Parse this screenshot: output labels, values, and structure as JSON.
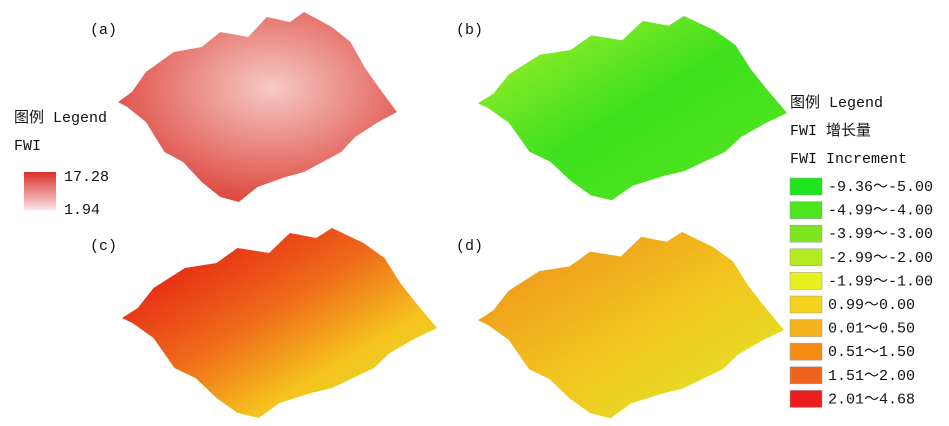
{
  "panels": [
    {
      "label": "(a)"
    },
    {
      "label": "(b)"
    },
    {
      "label": "(c)"
    },
    {
      "label": "(d)"
    }
  ],
  "fwi_legend": {
    "title": "图例 Legend",
    "subtitle": "FWI",
    "max_label": "17.28",
    "min_label": "1.94",
    "colors": [
      "#d9302a",
      "#fbe3e3"
    ]
  },
  "increment_legend": {
    "title": "图例 Legend",
    "subtitle": "FWI  增长量",
    "subtitle_en": "FWI  Increment",
    "classes": [
      {
        "label": "-9.36～-5.00",
        "color": "#1ee61e"
      },
      {
        "label": "-4.99～-4.00",
        "color": "#4be61e"
      },
      {
        "label": "-3.99～-3.00",
        "color": "#7de61e"
      },
      {
        "label": "-2.99～-2.00",
        "color": "#b4eb1e"
      },
      {
        "label": "-1.99～-1.00",
        "color": "#e6f01e"
      },
      {
        "label": "0.99～0.00",
        "color": "#f5d21e"
      },
      {
        "label": "0.01～0.50",
        "color": "#f5b41e"
      },
      {
        "label": "0.51～1.50",
        "color": "#f58c14"
      },
      {
        "label": "1.51～2.00",
        "color": "#f0641e"
      },
      {
        "label": "2.01～4.68",
        "color": "#eb1e1e"
      }
    ]
  }
}
